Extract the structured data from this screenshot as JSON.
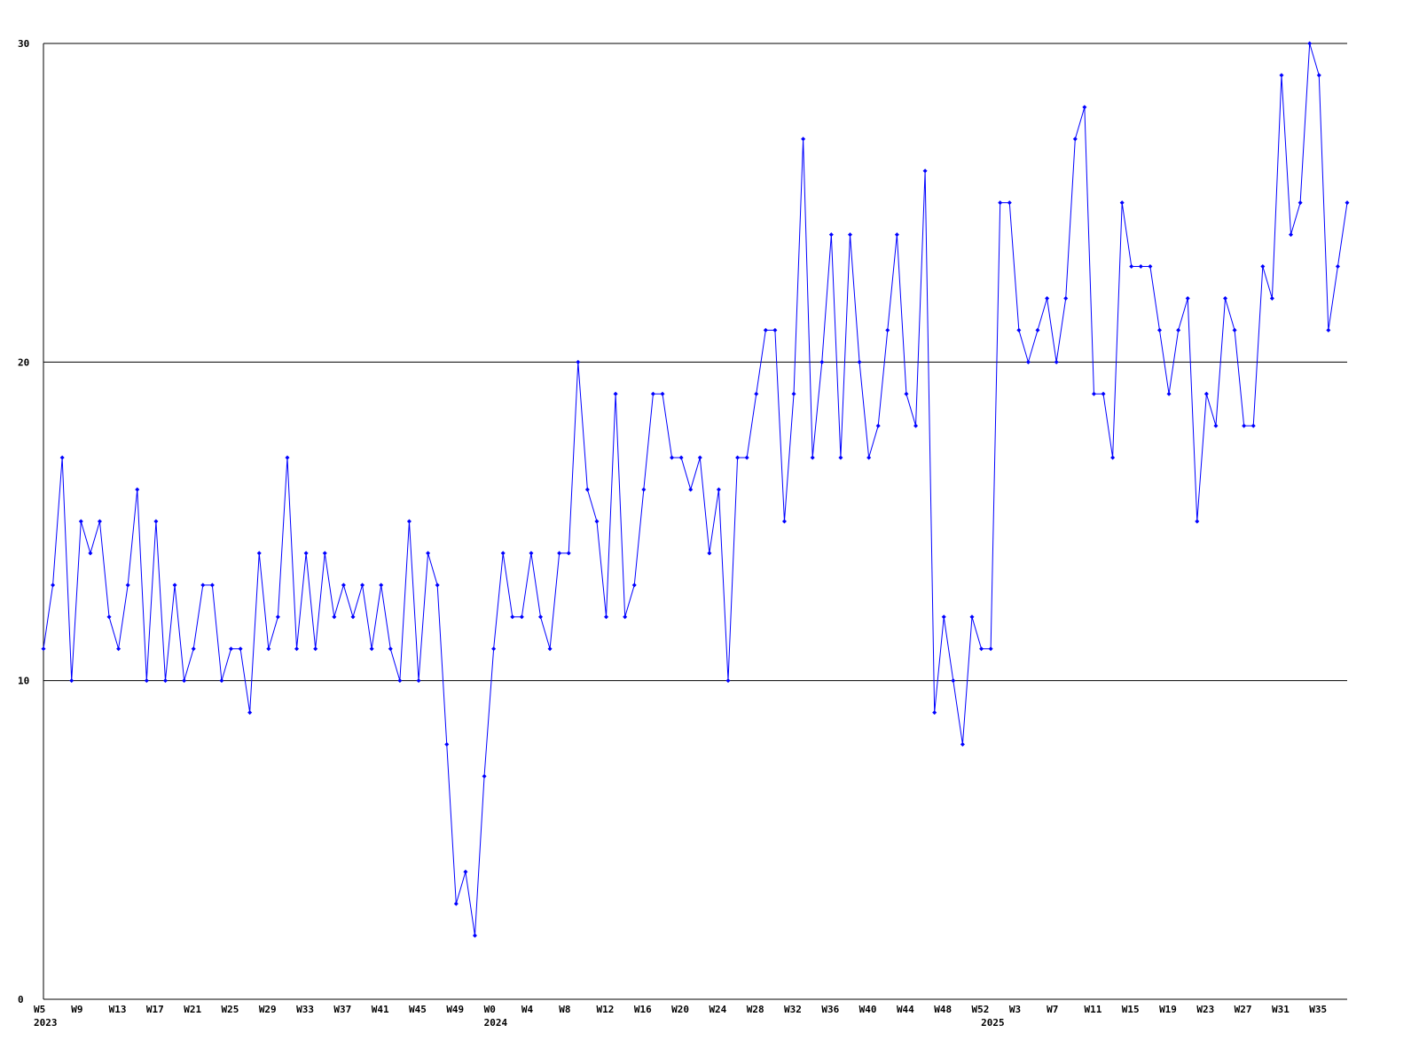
{
  "chart_data": {
    "type": "line",
    "categories": [
      "W5",
      null,
      null,
      null,
      "W9",
      null,
      null,
      null,
      "W13",
      null,
      null,
      null,
      "W17",
      null,
      null,
      null,
      "W21",
      null,
      null,
      null,
      "W25",
      null,
      null,
      null,
      "W29",
      null,
      null,
      null,
      "W33",
      null,
      null,
      null,
      "W37",
      null,
      null,
      null,
      "W41",
      null,
      null,
      null,
      "W45",
      null,
      null,
      null,
      "W49",
      null,
      null,
      null,
      "W0",
      null,
      null,
      null,
      "W4",
      null,
      null,
      null,
      "W8",
      null,
      null,
      null,
      "W12",
      null,
      null,
      null,
      "W16",
      null,
      null,
      null,
      "W20",
      null,
      null,
      null,
      "W24",
      null,
      null,
      null,
      "W28",
      null,
      null,
      null,
      "W32",
      null,
      null,
      null,
      "W36",
      null,
      null,
      null,
      "W40",
      null,
      null,
      null,
      "W44",
      null,
      null,
      null,
      "W48",
      null,
      null,
      null,
      "W52",
      null,
      null,
      null,
      "W3",
      null,
      null,
      null,
      "W7",
      null,
      null,
      null,
      "W11",
      null,
      null,
      null,
      "W15",
      null,
      null,
      null,
      "W19",
      null,
      null,
      null,
      "W23",
      null,
      null,
      null,
      "W27",
      null,
      null,
      null,
      "W31",
      null,
      null,
      null,
      "W35",
      null,
      null,
      null
    ],
    "year_labels": [
      "2023",
      null,
      null,
      null,
      null,
      null,
      null,
      null,
      null,
      null,
      null,
      null,
      null,
      null,
      null,
      null,
      null,
      null,
      null,
      null,
      null,
      null,
      null,
      null,
      null,
      null,
      null,
      null,
      null,
      null,
      null,
      null,
      null,
      null,
      null,
      null,
      null,
      null,
      null,
      null,
      null,
      null,
      null,
      null,
      null,
      null,
      null,
      null,
      "2024",
      null,
      null,
      null,
      null,
      null,
      null,
      null,
      null,
      null,
      null,
      null,
      null,
      null,
      null,
      null,
      null,
      null,
      null,
      null,
      null,
      null,
      null,
      null,
      null,
      null,
      null,
      null,
      null,
      null,
      null,
      null,
      null,
      null,
      null,
      null,
      null,
      null,
      null,
      null,
      null,
      null,
      null,
      null,
      null,
      null,
      null,
      null,
      null,
      null,
      null,
      null,
      null,
      "2025",
      null,
      null,
      null,
      null,
      null,
      null,
      null,
      null,
      null,
      null,
      null,
      null,
      null,
      null,
      null,
      null,
      null,
      null,
      null,
      null,
      null,
      null,
      null,
      null,
      null,
      null,
      null,
      null,
      null,
      null,
      null,
      null,
      null,
      null,
      null,
      null,
      null,
      null
    ],
    "values": [
      11,
      13,
      17,
      10,
      15,
      14,
      15,
      12,
      11,
      13,
      16,
      10,
      15,
      10,
      13,
      10,
      11,
      13,
      13,
      10,
      11,
      11,
      9,
      14,
      11,
      12,
      17,
      11,
      14,
      11,
      14,
      12,
      13,
      12,
      13,
      11,
      13,
      11,
      10,
      15,
      10,
      14,
      13,
      8,
      3,
      4,
      2,
      7,
      11,
      14,
      12,
      12,
      14,
      12,
      11,
      14,
      14,
      20,
      16,
      15,
      12,
      19,
      12,
      13,
      16,
      19,
      19,
      17,
      17,
      16,
      17,
      14,
      16,
      10,
      17,
      17,
      19,
      21,
      21,
      15,
      19,
      27,
      17,
      20,
      24,
      17,
      24,
      20,
      17,
      18,
      21,
      24,
      19,
      18,
      26,
      9,
      12,
      10,
      8,
      12,
      11,
      11,
      25,
      25,
      21,
      20,
      21,
      22,
      20,
      22,
      27,
      28,
      19,
      19,
      17,
      25,
      23,
      23,
      23,
      21,
      19,
      21,
      22,
      15,
      19,
      18,
      22,
      21,
      18,
      18,
      23,
      22,
      29,
      24,
      25,
      30,
      29,
      21,
      23,
      25
    ],
    "color": "#0000ff",
    "ylim": [
      0,
      30
    ],
    "yticks": [
      0,
      10,
      20,
      30
    ],
    "grid": true
  }
}
